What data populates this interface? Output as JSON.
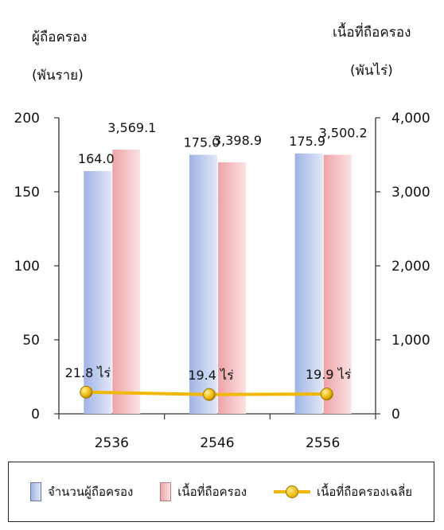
{
  "chart_data": {
    "type": "bar",
    "categories": [
      "2536",
      "2546",
      "2556"
    ],
    "left_axis": {
      "title_line1": "ผู้ถือครอง",
      "title_line2": "(พันราย)",
      "ylim": [
        0,
        200
      ],
      "ticks": [
        "0",
        "50",
        "100",
        "150",
        "200"
      ]
    },
    "right_axis": {
      "title_line1": "เนื้อที่ถือครอง",
      "title_line2": "(พันไร่)",
      "ylim": [
        0,
        4000
      ],
      "ticks": [
        "0",
        "1,000",
        "2,000",
        "3,000",
        "4,000"
      ]
    },
    "series": [
      {
        "name": "จำนวนผู้ถือครอง",
        "axis": "left",
        "values": [
          164.0,
          175.0,
          175.9
        ],
        "labels": [
          "164.0",
          "175.0",
          "175.9"
        ],
        "color": "#9fb3e6"
      },
      {
        "name": "เนื้อที่ถือครอง",
        "axis": "right",
        "values": [
          3569.1,
          3398.9,
          3500.2
        ],
        "labels": [
          "3,569.1",
          "3,398.9",
          "3,500.2"
        ],
        "color": "#eea5aa"
      },
      {
        "name": "เนื้อที่ถือครองเฉลี่ย",
        "type": "line",
        "values": [
          21.8,
          19.4,
          19.9
        ],
        "labels": [
          "21.8",
          "19.4",
          "19.9"
        ],
        "unit": "ไร่",
        "color": "#f2b705"
      }
    ],
    "legend_position": "bottom"
  }
}
